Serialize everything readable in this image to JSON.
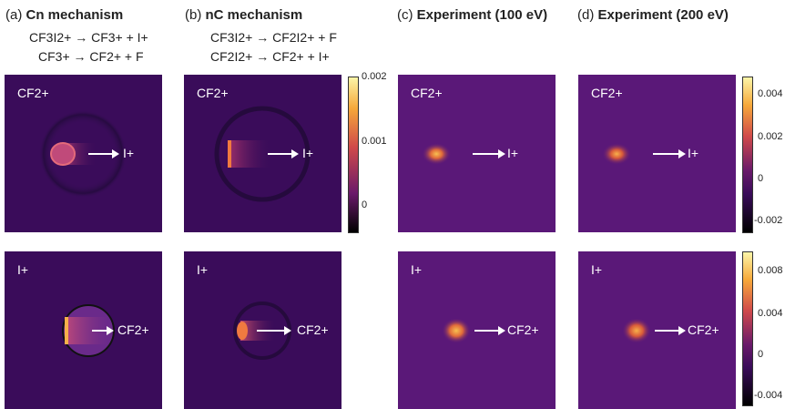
{
  "headers": [
    {
      "prefix": "(a)",
      "title": "Cn mechanism"
    },
    {
      "prefix": "(b)",
      "title": "nC mechanism"
    },
    {
      "prefix": "(c)",
      "title": "Experiment (100 eV)"
    },
    {
      "prefix": "(d)",
      "title": "Experiment (200 eV)"
    }
  ],
  "equations": {
    "a1": "CF3I2+ → CF3+ + I+",
    "a2": "CF3+ → CF2+ + F",
    "b1": "CF3I2+ → CF2I2+ + F",
    "b2": "CF2I2+ → CF2+ + I+"
  },
  "labels": {
    "cf2": "CF2+",
    "iplus": "I+"
  },
  "colorbars": {
    "sim": [
      "0.002",
      "0.001",
      "0"
    ],
    "exp_top": [
      "0.004",
      "0.002",
      "0",
      "-0.002"
    ],
    "exp_bottom": [
      "0.008",
      "0.004",
      "0",
      "-0.004"
    ]
  },
  "colors": {
    "sim_bg": "#3a0c5a",
    "exp_bg": "#5a1878",
    "hot": "#f6c04a",
    "ring": "#c03a6a"
  }
}
